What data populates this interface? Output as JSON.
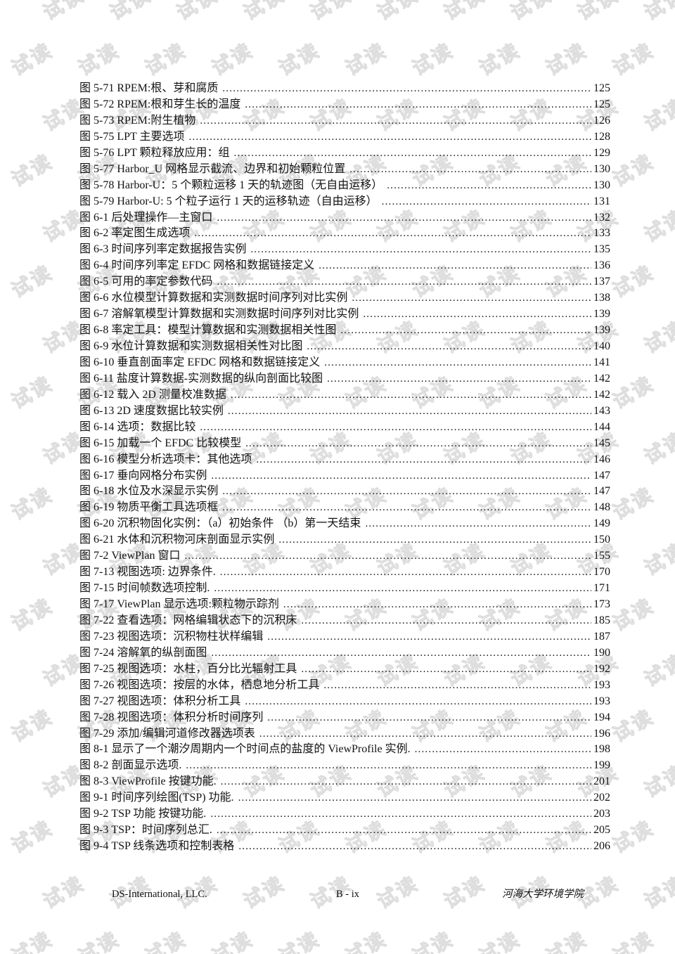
{
  "watermark": {
    "text": "试读"
  },
  "toc": {
    "entries": [
      {
        "label": "图 5-71 RPEM:根、芽和腐质",
        "page": "125"
      },
      {
        "label": "图 5-72 RPEM:根和芽生长的温度",
        "page": "125"
      },
      {
        "label": "图 5-73 RPEM:附生植物",
        "page": "126"
      },
      {
        "label": "图 5-75 LPT 主要选项",
        "page": "128"
      },
      {
        "label": "图 5-76 LPT 颗粒释放应用：组",
        "page": "129"
      },
      {
        "label": "图 5-77 Harbor_U 网格显示截流、边界和初始颗粒位置",
        "page": "130"
      },
      {
        "label": "图 5-78 Harbor-U：5 个颗粒运移 1 天的轨迹图（无自由运移）",
        "page": "130"
      },
      {
        "label": "图 5-79 Harbor-U: 5 个粒子运行 1 天的运移轨迹（自由运移）",
        "page": "131"
      },
      {
        "label": "图 6-1 后处理操作—主窗口",
        "page": "132"
      },
      {
        "label": "图 6-2 率定图生成选项",
        "page": "133"
      },
      {
        "label": "图 6-3 时间序列率定数据报告实例",
        "page": "135"
      },
      {
        "label": "图 6-4 时间序列率定 EFDC 网格和数据链接定义",
        "page": "136"
      },
      {
        "label": "图 6-5 可用的率定参数代码",
        "page": "137"
      },
      {
        "label": "图 6-6 水位模型计算数据和实测数据时间序列对比实例",
        "page": "138"
      },
      {
        "label": "图 6-7 溶解氧模型计算数据和实测数据时间序列对比实例",
        "page": "139"
      },
      {
        "label": "图 6-8 率定工具：模型计算数据和实测数据相关性图",
        "page": "139"
      },
      {
        "label": "图 6-9 水位计算数据和实测数据相关性对比图",
        "page": "140"
      },
      {
        "label": "图 6-10 垂直剖面率定 EFDC 网格和数据链接定义",
        "page": "141"
      },
      {
        "label": "图 6-11 盐度计算数据-实测数据的纵向剖面比较图",
        "page": "142"
      },
      {
        "label": "图 6-12 载入 2D 测量校准数据",
        "page": "142"
      },
      {
        "label": "图 6-13 2D 速度数据比较实例",
        "page": "143"
      },
      {
        "label": "图 6-14 选项：数据比较",
        "page": "144"
      },
      {
        "label": "图 6-15 加载一个 EFDC 比较模型",
        "page": "145"
      },
      {
        "label": "图 6-16 模型分析选项卡：其他选项",
        "page": "146"
      },
      {
        "label": "图 6-17 垂向网格分布实例",
        "page": "147"
      },
      {
        "label": "图 6-18 水位及水深显示实例",
        "page": "147"
      },
      {
        "label": "图 6-19 物质平衡工具选项框",
        "page": "148"
      },
      {
        "label": "图 6-20 沉积物固化实例：（a）初始条件 （b）第一天结束",
        "page": "149"
      },
      {
        "label": "图 6-21 水体和沉积物河床剖面显示实例",
        "page": "150"
      },
      {
        "label": "图 7-2 ViewPlan 窗口",
        "page": "155"
      },
      {
        "label": "图 7-13 视图选项: 边界条件.",
        "page": "170"
      },
      {
        "label": "图 7-15 时间帧数选项控制.",
        "page": "171"
      },
      {
        "label": "图 7-17 ViewPlan 显示选项:颗粒物示踪剂",
        "page": "173"
      },
      {
        "label": "图 7-22 查看选项：网格编辑状态下的沉积床",
        "page": "185"
      },
      {
        "label": "图 7-23 视图选项：沉积物柱状样编辑",
        "page": "187"
      },
      {
        "label": "图 7-24 溶解氧的纵剖面图",
        "page": "190"
      },
      {
        "label": "图 7-25 视图选项：水柱，百分比光辐射工具",
        "page": "192"
      },
      {
        "label": "图 7-26 视图选项：按层的水体，栖息地分析工具",
        "page": "193"
      },
      {
        "label": "图 7-27 视图选项：体积分析工具",
        "page": "193"
      },
      {
        "label": "图 7-28 视图选项：体积分析时间序列",
        "page": "194"
      },
      {
        "label": "图 7-29 添加/编辑河道修改器选项表",
        "page": "196"
      },
      {
        "label": "图 8-1 显示了一个潮汐周期内一个时间点的盐度的 ViewProfile 实例.",
        "page": "198"
      },
      {
        "label": "图 8-2 剖面显示选项.",
        "page": "199"
      },
      {
        "label": "图 8-3  ViewProfile 按键功能.",
        "page": "201"
      },
      {
        "label": "图 9-1 时间序列绘图(TSP) 功能.",
        "page": "202"
      },
      {
        "label": "图 9-2 TSP 功能 按键功能.",
        "page": "203"
      },
      {
        "label": "图 9-3 TSP：时间序列总汇.",
        "page": "205"
      },
      {
        "label": "图 9-4 TSP 线条选项和控制表格",
        "page": "206"
      }
    ]
  },
  "footer": {
    "left": "DS-International, LLC.",
    "center": "B - ix",
    "right": "河海大学环境学院"
  }
}
